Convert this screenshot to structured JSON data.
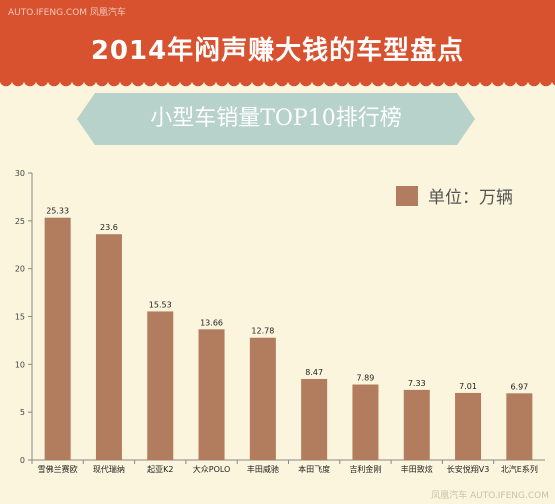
{
  "header": {
    "watermark": "AUTO.IFENG.COM 凤凰汽车",
    "title": "2014年闷声赚大钱的车型盘点"
  },
  "banner": {
    "subtitle": "小型车销量TOP10排行榜"
  },
  "legend": {
    "label": "单位：万辆",
    "color": "#b27c5e"
  },
  "footer": {
    "watermark": "凤凰汽车 AUTO.IFENG.COM"
  },
  "colors": {
    "header": "#d8522f",
    "banner": "#b7d1cb",
    "bar": "#b27c5e",
    "background": "#fbf5dd"
  },
  "chart_data": {
    "type": "bar",
    "categories": [
      "雪佛兰赛欧",
      "现代瑞纳",
      "起亚K2",
      "大众POLO",
      "丰田威驰",
      "本田飞度",
      "吉利金刚",
      "丰田致炫",
      "长安悦翔V3",
      "北汽E系列"
    ],
    "values": [
      25.33,
      23.6,
      15.53,
      13.66,
      12.78,
      8.47,
      7.89,
      7.33,
      7.01,
      6.97
    ],
    "value_labels": [
      "25.33",
      "23.6",
      "15.53",
      "13.66",
      "12.78",
      "8.47",
      "7.89",
      "7.33",
      "7.01",
      "6.97"
    ],
    "yticks": [
      "0",
      "5",
      "10",
      "15",
      "20",
      "25",
      "30"
    ],
    "ylim": [
      0,
      30
    ],
    "grid": false,
    "legend": "top-right"
  }
}
